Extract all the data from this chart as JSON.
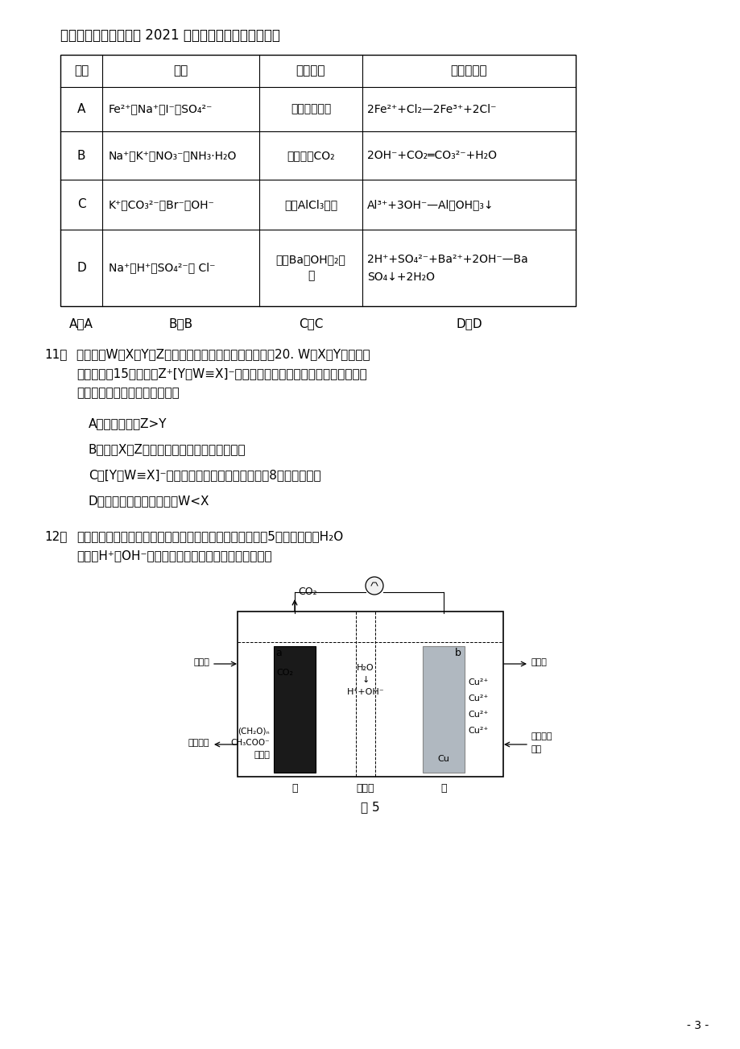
{
  "title": "贵州省铜仁市思南中学 2021 届高三化学第五次月考试题",
  "page_number": "- 3 -",
  "background_color": "#ffffff",
  "table": {
    "headers": [
      "选项",
      "微粒",
      "加入试剂",
      "离子方程式"
    ],
    "rows": [
      [
        "A",
        "Fe²⁺、Na⁺、I⁻、SO₄²⁻",
        "通入少量氯气",
        "2Fe²⁺+Cl₂—2Fe³⁺+2Cl⁻"
      ],
      [
        "B",
        "Na⁺、K⁺、NO₃⁻、NH₃·H₂O",
        "通入少量CO₂",
        "2OH⁻+CO₂═CO₃²⁻+H₂O"
      ],
      [
        "C",
        "K⁺、CO₃²⁻、Br⁻、OH⁻",
        "少量AlCl₃溶液",
        "Al³⁺+3OH⁻—Al（OH）₃↓"
      ],
      [
        "D",
        "Na⁺、H⁺、SO₄²⁻、 Cl⁻",
        "少量Ba（OH）₂溶\n液",
        "2H⁺+SO₄²⁻+Ba²⁺+2OH⁻—Ba\nSO₄↓+2H₂O"
      ]
    ]
  },
  "answers": [
    "A．A",
    "B．B",
    "C．C",
    "D．D"
  ],
  "q11": {
    "number": "11．",
    "text_lines": [
      "主族元素W、X、Y、Z的原子序数依次增加，且均不超过20. W、X、Y最外层电",
      "子数之和为15，化合物Z⁺[Y－W≡X]⁻是实验室常用于检验某常见金属离子的一",
      "种化学试剂。下列说法错误的是"
    ],
    "options": [
      "A．原子半径：Z>Y",
      "B．元素X、Z的氢化物遇水均能形成碱性溶液",
      "C．[Y－W≡X]⁻中并不是所有原子最外层均满足8电子稳定结构",
      "D．简单氢化物的稳定性：W<X"
    ]
  },
  "q12": {
    "number": "12．",
    "text_lines": [
      "利用生物电化学系统处理废水（含重金属离子）的原理如图5，双极膜内的H₂O",
      "解离成H⁺和OH⁻。下列对系统工作时的说法不正确的是"
    ],
    "figure_caption": "图 5"
  }
}
